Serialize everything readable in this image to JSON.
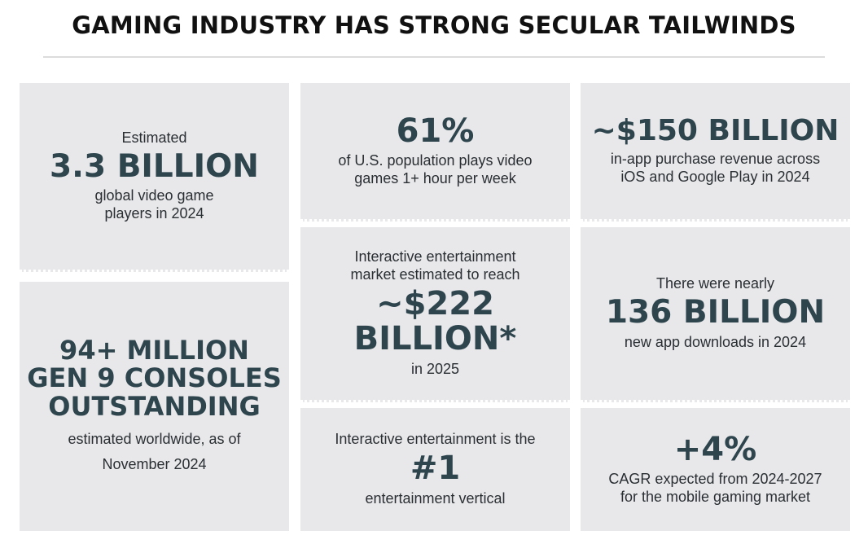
{
  "title": "GAMING INDUSTRY HAS STRONG SECULAR TAILWINDS",
  "tiles": {
    "players": {
      "pre": "Estimated",
      "big": "3.3 BILLION",
      "post_1": "global video game",
      "post_2": "players in 2024"
    },
    "consoles": {
      "big_1": "94+ MILLION",
      "big_2": "GEN 9 CONSOLES",
      "big_3": "OUTSTANDING",
      "post_1": "estimated worldwide, as of",
      "post_2": "November 2024"
    },
    "us_population": {
      "big": "61%",
      "post_1": "of U.S. population plays video",
      "post_2": "games 1+ hour per week"
    },
    "market": {
      "pre_1": "Interactive entertainment",
      "pre_2": "market estimated to reach",
      "big_1": "~$222",
      "big_2": "BILLION*",
      "post": "in 2025"
    },
    "vertical": {
      "pre": "Interactive entertainment is the",
      "big": "#1",
      "post": "entertainment vertical"
    },
    "in_app": {
      "big": "~$150 BILLION",
      "post_1": "in-app purchase revenue across",
      "post_2": "iOS and Google Play in 2024"
    },
    "downloads": {
      "pre": "There were nearly",
      "big": "136 BILLION",
      "post": "new app downloads in 2024"
    },
    "cagr": {
      "big": "+4%",
      "post_1": "CAGR expected from 2024-2027",
      "post_2": "for the mobile gaming market"
    }
  }
}
